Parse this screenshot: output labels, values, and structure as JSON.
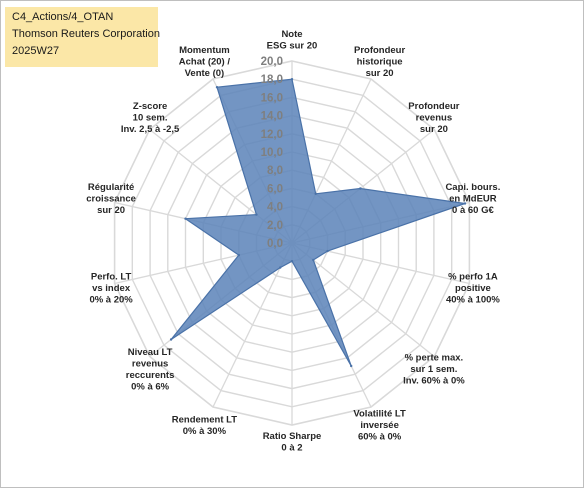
{
  "badge": {
    "line1": "C4_Actions/4_OTAN",
    "line2": "Thomson Reuters Corporation",
    "line3": "2025W27"
  },
  "chart_data": {
    "type": "radar",
    "rmin": 0,
    "rmax": 20,
    "tick_step": 2,
    "tick_labels": [
      "0,0",
      "2,0",
      "4,0",
      "6,0",
      "8,0",
      "10,0",
      "12,0",
      "14,0",
      "16,0",
      "18,0",
      "20,0"
    ],
    "grid": true,
    "fill_color": "#5b83b8",
    "line_color": "#4a72a8",
    "grid_color": "#d9d9d9",
    "axes": [
      {
        "label": [
          "Note",
          "ESG sur 20"
        ],
        "value": 18.0
      },
      {
        "label": [
          "Profondeur",
          "historique",
          "sur 20"
        ],
        "value": 6.0
      },
      {
        "label": [
          "Profondeur",
          "revenus",
          "sur 20"
        ],
        "value": 9.6
      },
      {
        "label": [
          "Capi. bours.",
          "en MdEUR",
          "0 à 60 G€"
        ],
        "value": 19.5
      },
      {
        "label": [
          "% perfo 1A",
          "positive",
          "40% à 100%"
        ],
        "value": 4.0
      },
      {
        "label": [
          "% perte max.",
          "sur 1 sem.",
          "Inv. 60% à 0%"
        ],
        "value": 3.0
      },
      {
        "label": [
          "Volatilité LT",
          "inversée",
          "60% à 0%"
        ],
        "value": 15.0
      },
      {
        "label": [
          "Ratio Sharpe",
          "0 à 2"
        ],
        "value": 2.0
      },
      {
        "label": [
          "Rendement LT",
          "0% à 30%"
        ],
        "value": 3.0
      },
      {
        "label": [
          "Niveau LT",
          "revenus",
          "reccurents",
          "0% à 6%"
        ],
        "value": 17.0
      },
      {
        "label": [
          "Perfo. LT",
          "vs index",
          "0% à 20%"
        ],
        "value": 6.0
      },
      {
        "label": [
          "Régularité",
          "croissance",
          "sur 20"
        ],
        "value": 12.0
      },
      {
        "label": [
          "Z-score",
          "10 sem.",
          "Inv. 2,5 à -2,5"
        ],
        "value": 5.0
      },
      {
        "label": [
          "Momentum",
          "Achat (20) /",
          "Vente (0)"
        ],
        "value": 19.0
      }
    ]
  }
}
